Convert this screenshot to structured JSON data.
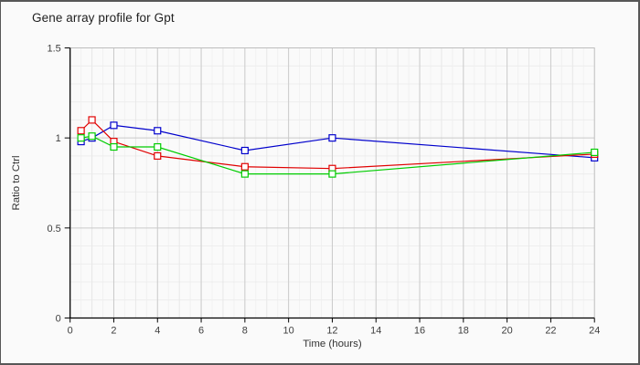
{
  "panel": {
    "background": "#fafafa",
    "border_color": "#575757"
  },
  "chart_data": {
    "type": "line",
    "title": "Gene array profile for Gpt",
    "xlabel": "Time (hours)",
    "ylabel": "Ratio to Ctrl",
    "xlim": [
      0,
      24
    ],
    "ylim": [
      0,
      1.5
    ],
    "x_major_ticks": [
      0,
      2,
      4,
      6,
      8,
      10,
      12,
      14,
      16,
      18,
      20,
      22,
      24
    ],
    "y_major_ticks": [
      0,
      0.5,
      1,
      1.5
    ],
    "y_tick_labels": [
      "0",
      "0.5",
      "1",
      "1.5"
    ],
    "x_minor_step": 0.5,
    "y_minor_step": 0.1,
    "grid": true,
    "legend_position": "none",
    "marker": "open-square",
    "x": [
      0.5,
      1,
      2,
      4,
      8,
      12,
      24
    ],
    "series": [
      {
        "name": "blue",
        "color": "#0000cc",
        "values": [
          0.98,
          1.0,
          1.07,
          1.04,
          0.93,
          1.0,
          0.89
        ]
      },
      {
        "name": "red",
        "color": "#e00000",
        "values": [
          1.04,
          1.1,
          0.98,
          0.9,
          0.84,
          0.83,
          0.91
        ]
      },
      {
        "name": "green",
        "color": "#00cc00",
        "values": [
          1.0,
          1.01,
          0.95,
          0.95,
          0.8,
          0.8,
          0.92
        ]
      }
    ]
  }
}
